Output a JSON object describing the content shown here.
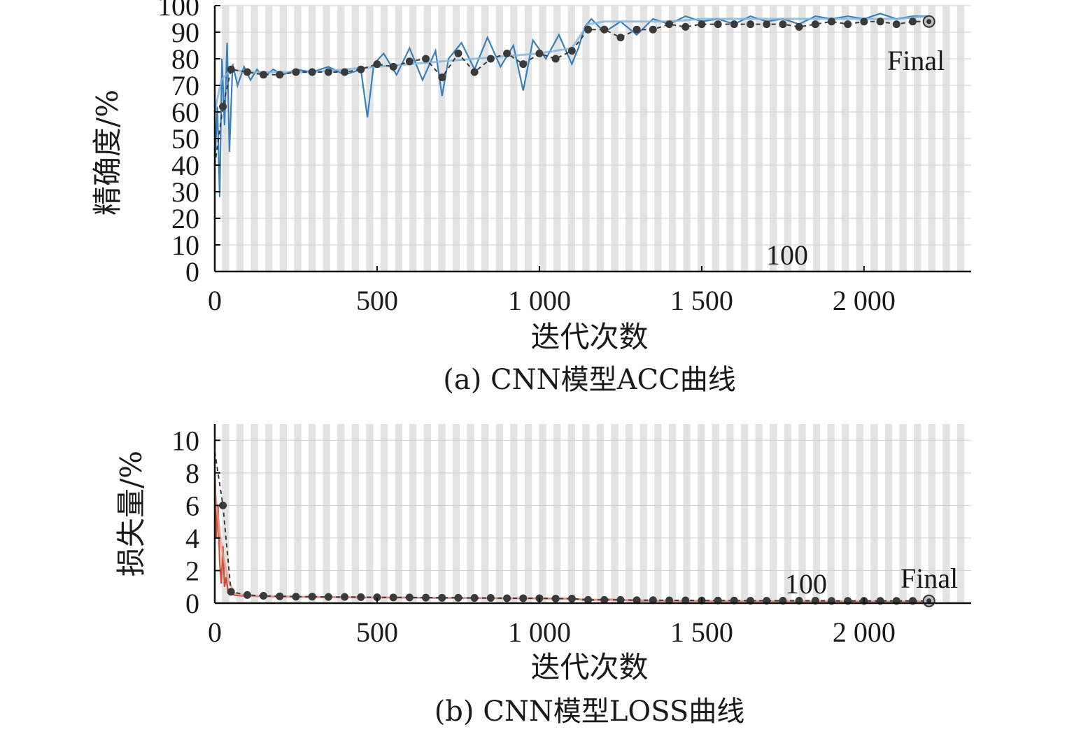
{
  "chart_data": [
    {
      "type": "line",
      "caption": "(a) CNN模型ACC曲线",
      "xlabel": "迭代次数",
      "ylabel": "精确度/%",
      "xlim": [
        0,
        2330
      ],
      "ylim": [
        0,
        100
      ],
      "xticks": [
        0,
        500,
        1000,
        1500,
        2000
      ],
      "xtick_labels": [
        "0",
        "500",
        "1 000",
        "1 500",
        "2 000"
      ],
      "yticks": [
        0,
        10,
        20,
        30,
        40,
        50,
        60,
        70,
        80,
        90,
        100
      ],
      "ytick_labels": [
        "0",
        "10",
        "20",
        "30",
        "40",
        "50",
        "60",
        "70",
        "80",
        "90",
        "100"
      ],
      "annotations": {
        "epoch": "100",
        "final": "Final"
      },
      "series": [
        {
          "kind": "raw",
          "color": "#2e7ab8",
          "x": [
            0,
            8,
            15,
            22,
            30,
            38,
            45,
            55,
            70,
            90,
            110,
            130,
            150,
            180,
            210,
            250,
            300,
            350,
            400,
            450,
            470,
            490,
            520,
            560,
            600,
            640,
            680,
            700,
            720,
            760,
            800,
            840,
            880,
            920,
            950,
            980,
            1020,
            1060,
            1100,
            1120,
            1140,
            1160,
            1200,
            1250,
            1300,
            1350,
            1400,
            1450,
            1500,
            1550,
            1600,
            1650,
            1700,
            1750,
            1800,
            1850,
            1900,
            1950,
            2000,
            2050,
            2100,
            2150,
            2200
          ],
          "y": [
            40,
            62,
            28,
            80,
            55,
            86,
            45,
            78,
            70,
            77,
            72,
            76,
            73,
            76,
            74,
            76,
            75,
            77,
            74,
            76,
            58,
            78,
            82,
            74,
            84,
            72,
            83,
            66,
            80,
            86,
            76,
            88,
            77,
            85,
            68,
            87,
            80,
            89,
            78,
            84,
            92,
            95,
            90,
            94,
            89,
            95,
            93,
            96,
            94,
            95,
            93,
            96,
            94,
            95,
            93,
            96,
            95,
            96,
            95,
            97,
            95,
            96,
            96
          ]
        },
        {
          "kind": "smooth",
          "color": "#7fb4dc",
          "x": [
            0,
            20,
            50,
            100,
            200,
            300,
            400,
            500,
            600,
            700,
            800,
            900,
            1000,
            1100,
            1150,
            1200,
            1300,
            1400,
            1500,
            1600,
            1700,
            1800,
            1900,
            2000,
            2100,
            2200
          ],
          "y": [
            60,
            72,
            76,
            75,
            75,
            75,
            76,
            77,
            78,
            79,
            80,
            81,
            82,
            84,
            93,
            94,
            94,
            94,
            95,
            95,
            95,
            95,
            95,
            95,
            95,
            96
          ]
        },
        {
          "kind": "validation",
          "color": "#3a3a3a",
          "x": [
            0,
            25,
            50,
            100,
            150,
            200,
            250,
            300,
            350,
            400,
            450,
            500,
            550,
            600,
            650,
            700,
            750,
            800,
            850,
            900,
            950,
            1000,
            1050,
            1100,
            1150,
            1200,
            1250,
            1300,
            1350,
            1400,
            1450,
            1500,
            1550,
            1600,
            1650,
            1700,
            1750,
            1800,
            1850,
            1900,
            1950,
            2000,
            2050,
            2100,
            2150,
            2200
          ],
          "y": [
            40,
            62,
            76,
            75,
            74,
            74,
            75,
            75,
            75,
            75,
            76,
            78,
            77,
            79,
            80,
            73,
            82,
            75,
            80,
            82,
            78,
            82,
            80,
            83,
            91,
            91,
            88,
            91,
            91,
            93,
            92,
            93,
            93,
            93,
            93,
            93,
            93,
            92,
            93,
            94,
            93,
            94,
            94,
            93,
            94,
            94
          ]
        },
        {
          "kind": "final",
          "x": [
            2200
          ],
          "y": [
            94
          ]
        }
      ]
    },
    {
      "type": "line",
      "caption": "(b) CNN模型LOSS曲线",
      "xlabel": "迭代次数",
      "ylabel": "损失量/%",
      "xlim": [
        0,
        2330
      ],
      "ylim": [
        0,
        11
      ],
      "xticks": [
        0,
        500,
        1000,
        1500,
        2000
      ],
      "xtick_labels": [
        "0",
        "500",
        "1 000",
        "1 500",
        "2 000"
      ],
      "yticks": [
        0,
        2,
        4,
        6,
        8,
        10
      ],
      "ytick_labels": [
        "0",
        "2",
        "4",
        "6",
        "8",
        "10"
      ],
      "annotations": {
        "epoch": "100",
        "final": "Final"
      },
      "series": [
        {
          "kind": "raw",
          "color": "#d2452b",
          "x": [
            0,
            5,
            10,
            15,
            20,
            25,
            30,
            35,
            40,
            45,
            50,
            60,
            80,
            100,
            150,
            200,
            300,
            400,
            500,
            600,
            700,
            800,
            900,
            1000,
            1100,
            1150,
            1200,
            1300,
            1400,
            1500,
            1600,
            1700,
            1800,
            1900,
            2000,
            2100,
            2200
          ],
          "y": [
            8.5,
            4,
            6,
            2.5,
            1.2,
            3.5,
            1.0,
            1.6,
            0.8,
            0.6,
            0.7,
            0.5,
            0.45,
            0.45,
            0.4,
            0.42,
            0.38,
            0.36,
            0.35,
            0.35,
            0.32,
            0.32,
            0.3,
            0.3,
            0.28,
            0.15,
            0.25,
            0.15,
            0.12,
            0.12,
            0.1,
            0.12,
            0.1,
            0.1,
            0.1,
            0.1,
            0.1
          ]
        },
        {
          "kind": "smooth",
          "color": "#e89a8c",
          "x": [
            0,
            20,
            40,
            60,
            100,
            200,
            400,
            600,
            800,
            1000,
            1200,
            1400,
            1600,
            1800,
            2000,
            2200
          ],
          "y": [
            7,
            3.5,
            1.5,
            0.6,
            0.45,
            0.4,
            0.36,
            0.33,
            0.31,
            0.29,
            0.2,
            0.14,
            0.12,
            0.11,
            0.1,
            0.1
          ]
        },
        {
          "kind": "validation",
          "color": "#3a3a3a",
          "x": [
            0,
            25,
            50,
            100,
            150,
            200,
            250,
            300,
            350,
            400,
            450,
            500,
            550,
            600,
            650,
            700,
            750,
            800,
            850,
            900,
            950,
            1000,
            1050,
            1100,
            1150,
            1200,
            1250,
            1300,
            1350,
            1400,
            1450,
            1500,
            1550,
            1600,
            1650,
            1700,
            1750,
            1800,
            1850,
            1900,
            1950,
            2000,
            2050,
            2100,
            2150,
            2200
          ],
          "y": [
            9.3,
            6.0,
            0.7,
            0.5,
            0.45,
            0.42,
            0.4,
            0.4,
            0.38,
            0.38,
            0.37,
            0.36,
            0.35,
            0.35,
            0.34,
            0.33,
            0.33,
            0.32,
            0.32,
            0.3,
            0.3,
            0.3,
            0.28,
            0.28,
            0.2,
            0.2,
            0.2,
            0.18,
            0.18,
            0.17,
            0.17,
            0.16,
            0.16,
            0.16,
            0.15,
            0.15,
            0.15,
            0.15,
            0.15,
            0.14,
            0.14,
            0.14,
            0.14,
            0.14,
            0.14,
            0.14
          ]
        },
        {
          "kind": "final",
          "x": [
            2200
          ],
          "y": [
            0.14
          ]
        }
      ]
    }
  ]
}
